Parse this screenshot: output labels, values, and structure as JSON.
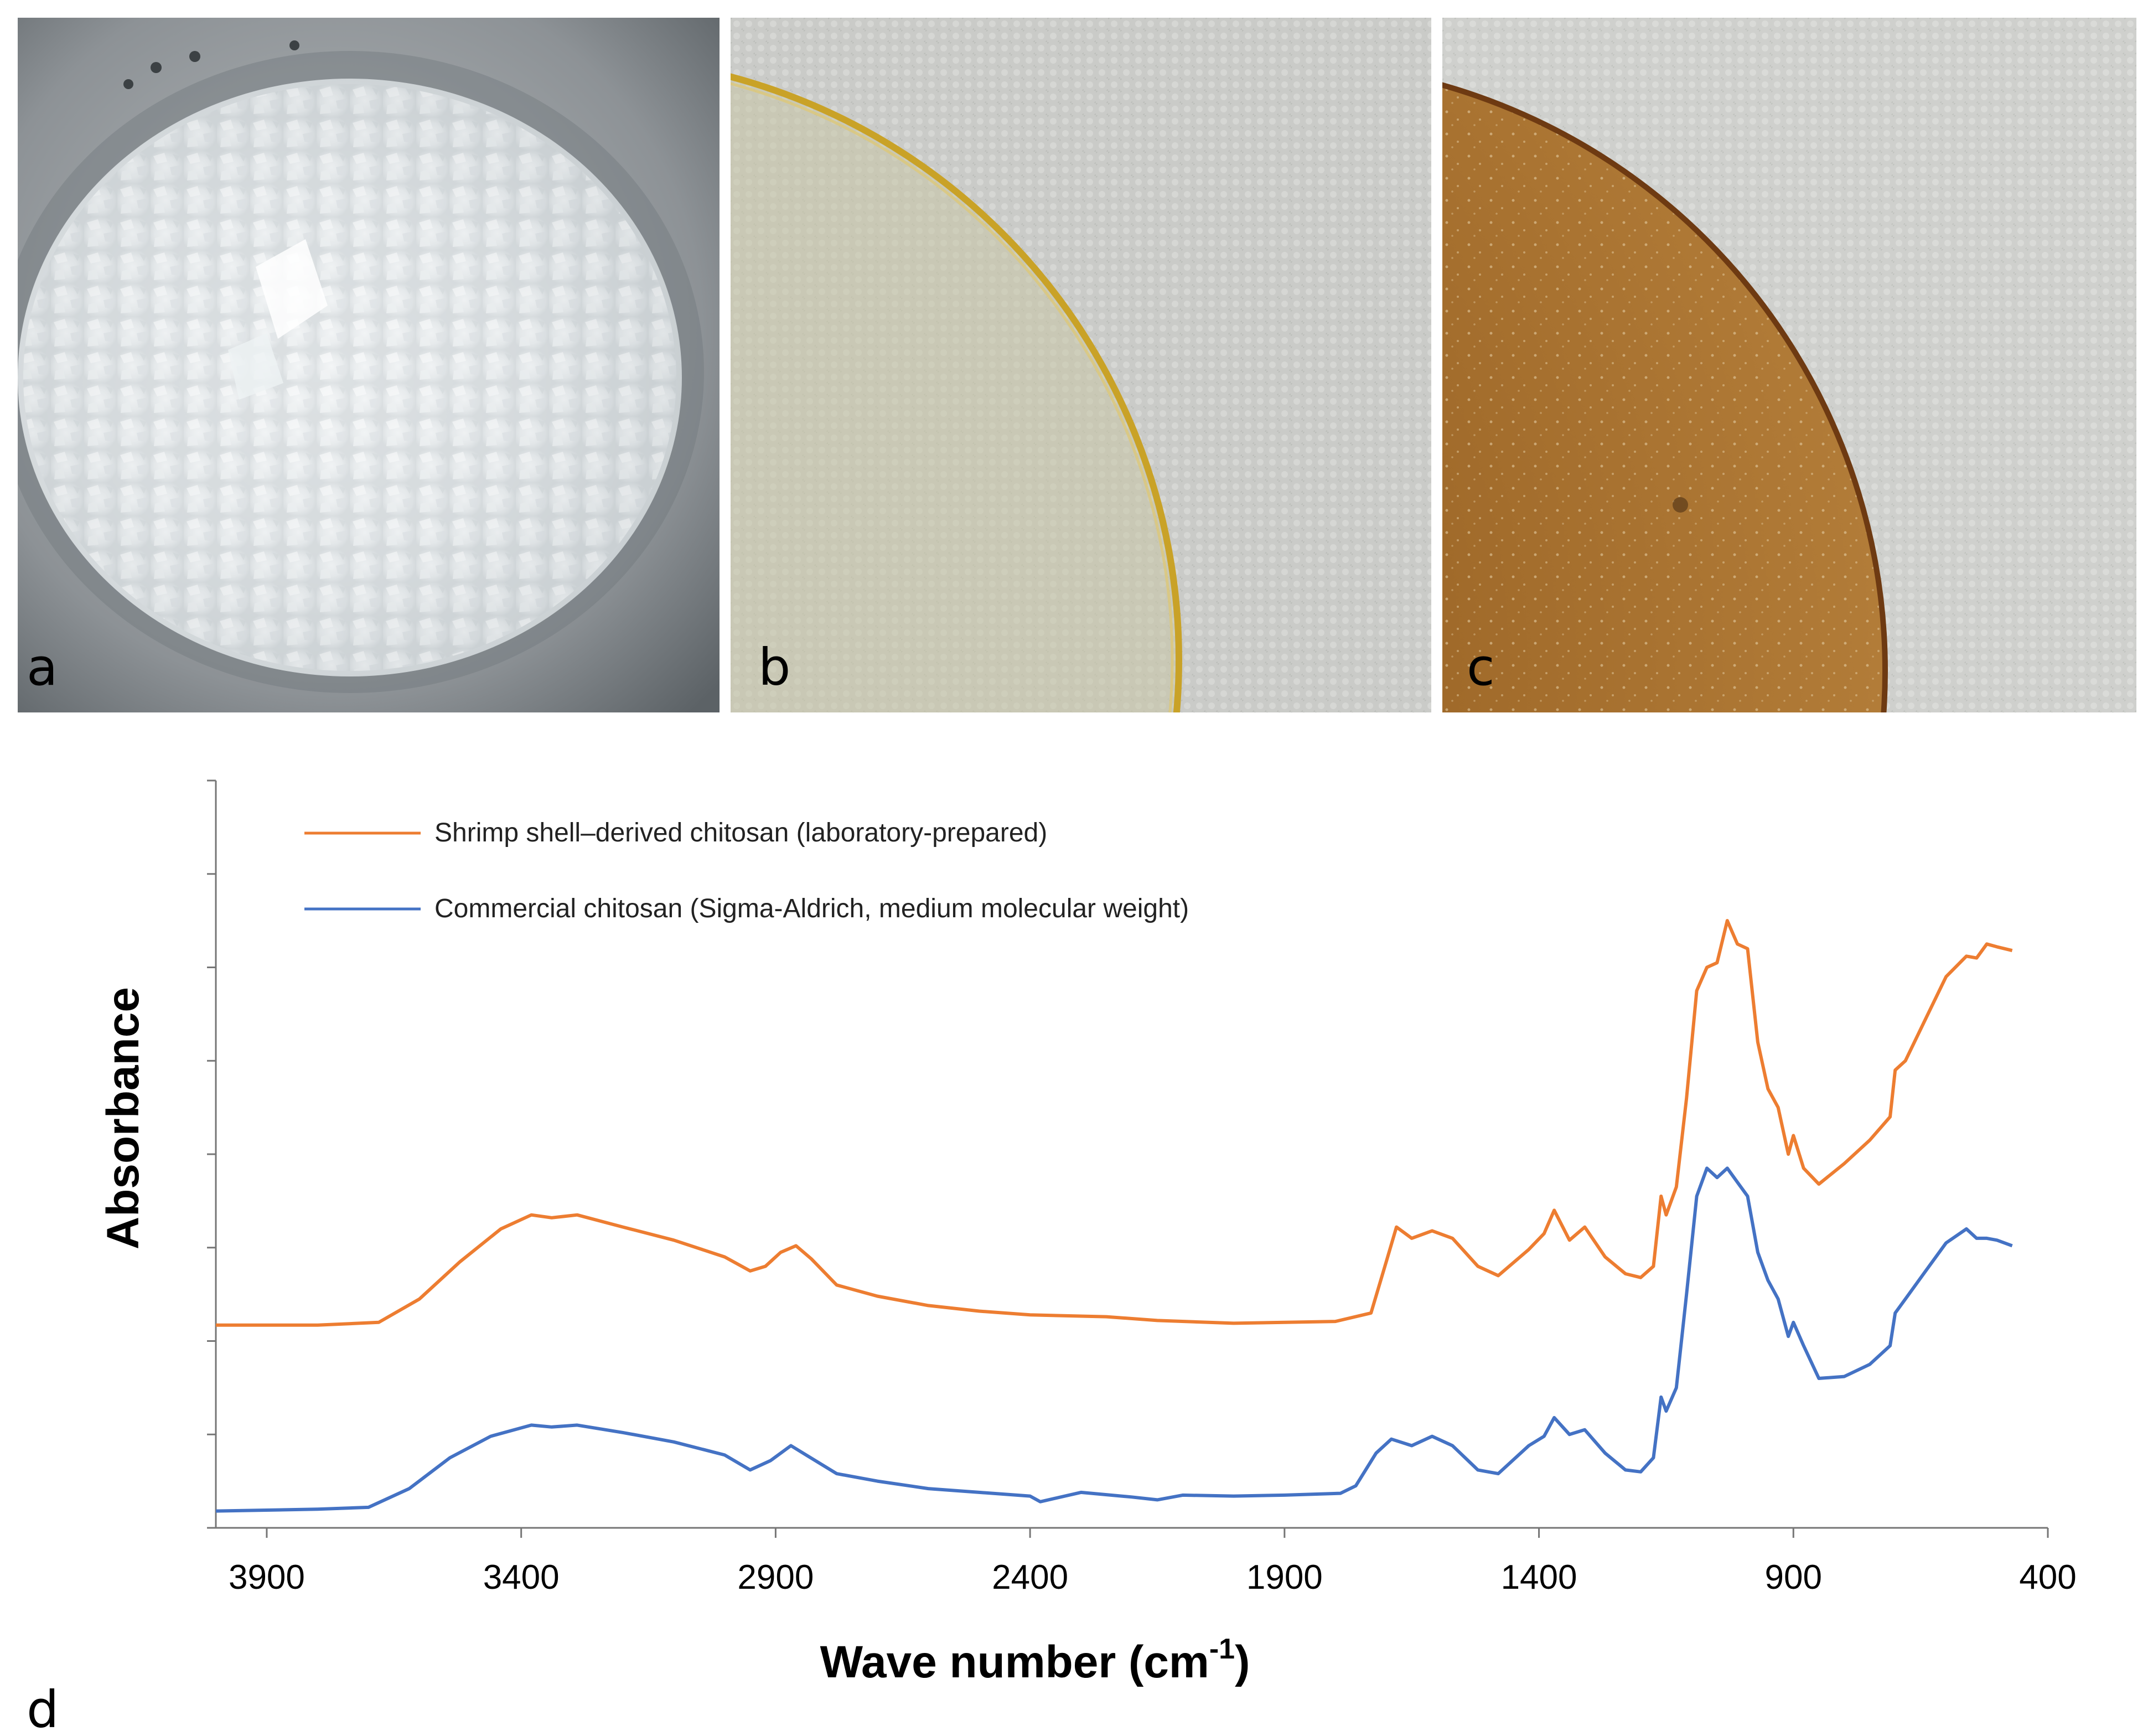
{
  "panels": {
    "a": "a",
    "b": "b",
    "c": "c",
    "d": "d"
  },
  "colors": {
    "orange": "#ED7D31",
    "blue": "#4472C4",
    "axis": "#767676"
  },
  "chart_data": {
    "type": "line",
    "xlabel": "Wave number (cm",
    "xlabel_sup": "-1",
    "xlabel_close": ")",
    "ylabel": "Absorbance",
    "xlim": [
      4000,
      400
    ],
    "x_reversed": true,
    "ylim": [
      0,
      8
    ],
    "xticks": [
      "3900",
      "3400",
      "2900",
      "2400",
      "1900",
      "1400",
      "900",
      "400"
    ],
    "xtick_values": [
      3900,
      3400,
      2900,
      2400,
      1900,
      1400,
      900,
      400
    ],
    "y_minor_ticks": [
      0,
      1,
      2,
      3,
      4,
      5,
      6,
      7,
      8
    ],
    "legend_position": "top-left",
    "series": [
      {
        "name": "Shrimp shell–derived chitosan (laboratory-prepared)",
        "color": "#ED7D31",
        "points": [
          [
            4000,
            2.17
          ],
          [
            3800,
            2.17
          ],
          [
            3680,
            2.2
          ],
          [
            3600,
            2.45
          ],
          [
            3520,
            2.85
          ],
          [
            3440,
            3.2
          ],
          [
            3380,
            3.35
          ],
          [
            3340,
            3.32
          ],
          [
            3290,
            3.35
          ],
          [
            3200,
            3.22
          ],
          [
            3100,
            3.08
          ],
          [
            3000,
            2.9
          ],
          [
            2950,
            2.75
          ],
          [
            2920,
            2.8
          ],
          [
            2890,
            2.95
          ],
          [
            2860,
            3.02
          ],
          [
            2830,
            2.88
          ],
          [
            2780,
            2.6
          ],
          [
            2700,
            2.48
          ],
          [
            2600,
            2.38
          ],
          [
            2500,
            2.32
          ],
          [
            2400,
            2.28
          ],
          [
            2250,
            2.26
          ],
          [
            2150,
            2.22
          ],
          [
            2000,
            2.19
          ],
          [
            1800,
            2.21
          ],
          [
            1730,
            2.3
          ],
          [
            1700,
            2.85
          ],
          [
            1680,
            3.22
          ],
          [
            1650,
            3.1
          ],
          [
            1610,
            3.18
          ],
          [
            1570,
            3.1
          ],
          [
            1520,
            2.8
          ],
          [
            1480,
            2.7
          ],
          [
            1420,
            2.98
          ],
          [
            1390,
            3.15
          ],
          [
            1370,
            3.4
          ],
          [
            1340,
            3.08
          ],
          [
            1310,
            3.22
          ],
          [
            1270,
            2.9
          ],
          [
            1230,
            2.72
          ],
          [
            1200,
            2.68
          ],
          [
            1175,
            2.8
          ],
          [
            1160,
            3.55
          ],
          [
            1150,
            3.35
          ],
          [
            1130,
            3.65
          ],
          [
            1110,
            4.6
          ],
          [
            1090,
            5.75
          ],
          [
            1070,
            6.0
          ],
          [
            1050,
            6.05
          ],
          [
            1030,
            6.5
          ],
          [
            1010,
            6.25
          ],
          [
            990,
            6.2
          ],
          [
            970,
            5.2
          ],
          [
            950,
            4.7
          ],
          [
            930,
            4.5
          ],
          [
            910,
            4.0
          ],
          [
            900,
            4.2
          ],
          [
            880,
            3.85
          ],
          [
            850,
            3.68
          ],
          [
            800,
            3.9
          ],
          [
            750,
            4.15
          ],
          [
            710,
            4.4
          ],
          [
            700,
            4.9
          ],
          [
            680,
            5.0
          ],
          [
            640,
            5.45
          ],
          [
            600,
            5.9
          ],
          [
            560,
            6.12
          ],
          [
            540,
            6.1
          ],
          [
            520,
            6.25
          ],
          [
            500,
            6.22
          ],
          [
            470,
            6.18
          ]
        ]
      },
      {
        "name": "Commercial chitosan (Sigma-Aldrich, medium molecular weight)",
        "color": "#4472C4",
        "points": [
          [
            4000,
            0.18
          ],
          [
            3800,
            0.2
          ],
          [
            3700,
            0.22
          ],
          [
            3620,
            0.42
          ],
          [
            3540,
            0.75
          ],
          [
            3460,
            0.98
          ],
          [
            3380,
            1.1
          ],
          [
            3340,
            1.08
          ],
          [
            3290,
            1.1
          ],
          [
            3200,
            1.02
          ],
          [
            3100,
            0.92
          ],
          [
            3000,
            0.78
          ],
          [
            2950,
            0.62
          ],
          [
            2910,
            0.72
          ],
          [
            2870,
            0.88
          ],
          [
            2840,
            0.78
          ],
          [
            2780,
            0.58
          ],
          [
            2700,
            0.5
          ],
          [
            2600,
            0.42
          ],
          [
            2500,
            0.38
          ],
          [
            2400,
            0.34
          ],
          [
            2380,
            0.28
          ],
          [
            2300,
            0.38
          ],
          [
            2200,
            0.33
          ],
          [
            2150,
            0.3
          ],
          [
            2100,
            0.35
          ],
          [
            2000,
            0.34
          ],
          [
            1900,
            0.35
          ],
          [
            1790,
            0.37
          ],
          [
            1760,
            0.45
          ],
          [
            1720,
            0.8
          ],
          [
            1690,
            0.95
          ],
          [
            1650,
            0.88
          ],
          [
            1610,
            0.98
          ],
          [
            1570,
            0.88
          ],
          [
            1520,
            0.62
          ],
          [
            1480,
            0.58
          ],
          [
            1420,
            0.88
          ],
          [
            1390,
            0.98
          ],
          [
            1370,
            1.18
          ],
          [
            1340,
            1.0
          ],
          [
            1310,
            1.05
          ],
          [
            1270,
            0.8
          ],
          [
            1230,
            0.62
          ],
          [
            1200,
            0.6
          ],
          [
            1175,
            0.75
          ],
          [
            1160,
            1.4
          ],
          [
            1150,
            1.25
          ],
          [
            1130,
            1.5
          ],
          [
            1110,
            2.5
          ],
          [
            1090,
            3.55
          ],
          [
            1070,
            3.85
          ],
          [
            1050,
            3.75
          ],
          [
            1030,
            3.85
          ],
          [
            1010,
            3.7
          ],
          [
            990,
            3.55
          ],
          [
            970,
            2.95
          ],
          [
            950,
            2.65
          ],
          [
            930,
            2.45
          ],
          [
            910,
            2.05
          ],
          [
            900,
            2.2
          ],
          [
            880,
            1.95
          ],
          [
            850,
            1.6
          ],
          [
            800,
            1.62
          ],
          [
            750,
            1.75
          ],
          [
            710,
            1.95
          ],
          [
            700,
            2.3
          ],
          [
            680,
            2.45
          ],
          [
            640,
            2.75
          ],
          [
            600,
            3.05
          ],
          [
            560,
            3.2
          ],
          [
            540,
            3.1
          ],
          [
            520,
            3.1
          ],
          [
            500,
            3.08
          ],
          [
            470,
            3.02
          ]
        ]
      }
    ]
  }
}
